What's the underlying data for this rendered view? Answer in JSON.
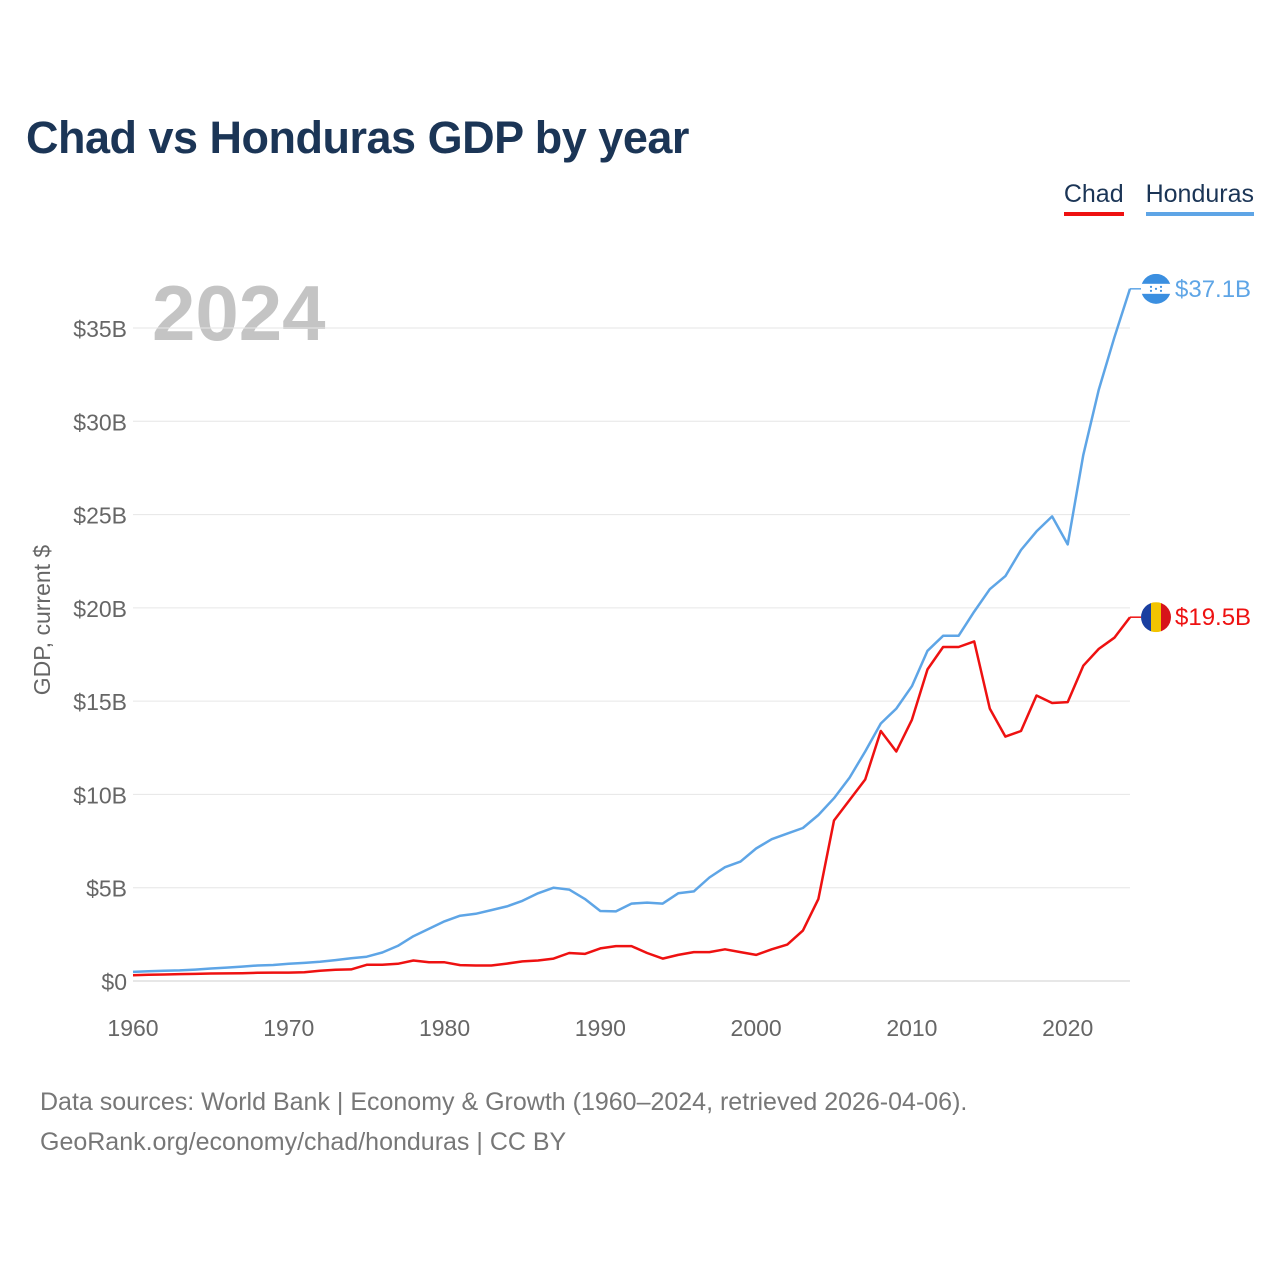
{
  "title": "Chad vs Honduras GDP by year",
  "legend": {
    "chad": "Chad",
    "honduras": "Honduras"
  },
  "year_label": "2024",
  "footer": {
    "line1": "Data sources: World Bank | Economy & Growth (1960–2024, retrieved 2026-04-06).",
    "line2": "GeoRank.org/economy/chad/honduras | CC BY"
  },
  "chart_data": {
    "type": "line",
    "title": "Chad vs Honduras GDP by year",
    "xlabel": "",
    "ylabel": "GDP, current $",
    "xlim": [
      1960,
      2024
    ],
    "ylim": [
      0,
      40
    ],
    "unit": "billion USD",
    "x_ticks": [
      "1960",
      "1970",
      "1980",
      "1990",
      "2000",
      "2010",
      "2020"
    ],
    "y_ticks": [
      {
        "value": 0,
        "label": "$0"
      },
      {
        "value": 5,
        "label": "$5B"
      },
      {
        "value": 10,
        "label": "$10B"
      },
      {
        "value": 15,
        "label": "$15B"
      },
      {
        "value": 20,
        "label": "$20B"
      },
      {
        "value": 25,
        "label": "$25B"
      },
      {
        "value": 30,
        "label": "$30B"
      },
      {
        "value": 35,
        "label": "$35B"
      }
    ],
    "x": [
      1960,
      1961,
      1962,
      1963,
      1964,
      1965,
      1966,
      1967,
      1968,
      1969,
      1970,
      1971,
      1972,
      1973,
      1974,
      1975,
      1976,
      1977,
      1978,
      1979,
      1980,
      1981,
      1982,
      1983,
      1984,
      1985,
      1986,
      1987,
      1988,
      1989,
      1990,
      1991,
      1992,
      1993,
      1994,
      1995,
      1996,
      1997,
      1998,
      1999,
      2000,
      2001,
      2002,
      2003,
      2004,
      2005,
      2006,
      2007,
      2008,
      2009,
      2010,
      2011,
      2012,
      2013,
      2014,
      2015,
      2016,
      2017,
      2018,
      2019,
      2020,
      2021,
      2022,
      2023,
      2024
    ],
    "series": [
      {
        "name": "Chad",
        "color": "#ee1111",
        "end_label": "$19.5B",
        "values": [
          0.31,
          0.33,
          0.35,
          0.37,
          0.38,
          0.4,
          0.41,
          0.42,
          0.44,
          0.45,
          0.45,
          0.47,
          0.55,
          0.6,
          0.62,
          0.87,
          0.87,
          0.92,
          1.1,
          1.0,
          1.0,
          0.85,
          0.83,
          0.83,
          0.93,
          1.05,
          1.1,
          1.2,
          1.5,
          1.45,
          1.75,
          1.87,
          1.87,
          1.5,
          1.2,
          1.4,
          1.55,
          1.55,
          1.7,
          1.55,
          1.4,
          1.7,
          1.95,
          2.7,
          4.4,
          8.6,
          9.7,
          10.8,
          13.4,
          12.3,
          14.0,
          16.7,
          17.9,
          17.9,
          18.2,
          14.6,
          13.1,
          13.4,
          15.3,
          14.9,
          14.95,
          16.9,
          17.8,
          18.4,
          19.5
        ]
      },
      {
        "name": "Honduras",
        "color": "#5ea5e6",
        "end_label": "$37.1B",
        "values": [
          0.49,
          0.52,
          0.55,
          0.57,
          0.61,
          0.67,
          0.72,
          0.77,
          0.83,
          0.86,
          0.92,
          0.97,
          1.03,
          1.12,
          1.22,
          1.3,
          1.53,
          1.88,
          2.4,
          2.8,
          3.2,
          3.5,
          3.6,
          3.8,
          4.0,
          4.3,
          4.7,
          5.0,
          4.9,
          4.4,
          3.75,
          3.73,
          4.15,
          4.2,
          4.15,
          4.7,
          4.8,
          5.55,
          6.1,
          6.4,
          7.1,
          7.6,
          7.9,
          8.2,
          8.9,
          9.8,
          10.9,
          12.3,
          13.8,
          14.6,
          15.8,
          17.7,
          18.5,
          18.5,
          19.8,
          21.0,
          21.7,
          23.1,
          24.1,
          24.9,
          23.4,
          28.2,
          31.7,
          34.5,
          37.1
        ]
      }
    ]
  }
}
